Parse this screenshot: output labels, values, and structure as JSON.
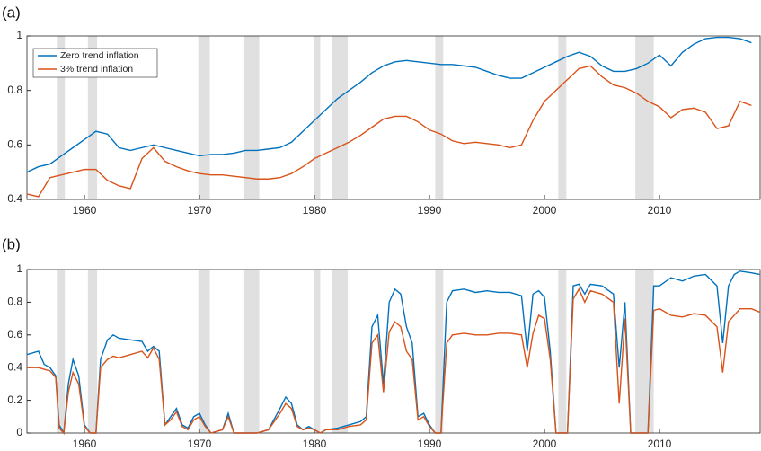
{
  "chart_data": [
    {
      "type": "line",
      "title": "(a)",
      "x": [
        1955,
        1956,
        1957,
        1958,
        1959,
        1960,
        1961,
        1962,
        1963,
        1964,
        1965,
        1966,
        1967,
        1968,
        1969,
        1970,
        1971,
        1972,
        1973,
        1974,
        1975,
        1976,
        1977,
        1978,
        1979,
        1980,
        1981,
        1982,
        1983,
        1984,
        1985,
        1986,
        1987,
        1988,
        1989,
        1990,
        1991,
        1992,
        1993,
        1994,
        1995,
        1996,
        1997,
        1998,
        1999,
        2000,
        2001,
        2002,
        2003,
        2004,
        2005,
        2006,
        2007,
        2008,
        2009,
        2010,
        2011,
        2012,
        2013,
        2014,
        2015,
        2016,
        2017,
        2018
      ],
      "series": [
        {
          "name": "Zero trend inflation",
          "color": "#0072bd",
          "values": [
            0.5,
            0.52,
            0.53,
            0.56,
            0.59,
            0.62,
            0.65,
            0.64,
            0.59,
            0.58,
            0.59,
            0.6,
            0.59,
            0.58,
            0.57,
            0.56,
            0.565,
            0.565,
            0.57,
            0.58,
            0.58,
            0.585,
            0.59,
            0.61,
            0.65,
            0.69,
            0.73,
            0.77,
            0.8,
            0.83,
            0.865,
            0.89,
            0.905,
            0.91,
            0.905,
            0.9,
            0.895,
            0.895,
            0.89,
            0.885,
            0.87,
            0.855,
            0.845,
            0.845,
            0.865,
            0.885,
            0.905,
            0.925,
            0.94,
            0.925,
            0.89,
            0.87,
            0.87,
            0.88,
            0.9,
            0.93,
            0.89,
            0.94,
            0.97,
            0.99,
            0.995,
            0.995,
            0.99,
            0.975
          ]
        },
        {
          "name": "3% trend inflation",
          "color": "#d95319",
          "values": [
            0.42,
            0.41,
            0.48,
            0.49,
            0.5,
            0.51,
            0.51,
            0.47,
            0.45,
            0.44,
            0.55,
            0.59,
            0.54,
            0.52,
            0.505,
            0.495,
            0.49,
            0.49,
            0.485,
            0.48,
            0.475,
            0.475,
            0.48,
            0.495,
            0.52,
            0.55,
            0.57,
            0.59,
            0.61,
            0.635,
            0.665,
            0.695,
            0.705,
            0.705,
            0.685,
            0.655,
            0.64,
            0.615,
            0.605,
            0.61,
            0.605,
            0.6,
            0.59,
            0.6,
            0.69,
            0.76,
            0.8,
            0.84,
            0.88,
            0.89,
            0.85,
            0.82,
            0.81,
            0.79,
            0.76,
            0.74,
            0.7,
            0.73,
            0.735,
            0.72,
            0.66,
            0.67,
            0.76,
            0.745
          ]
        }
      ],
      "shaded_regions": [
        [
          1957.6,
          1958.3
        ],
        [
          1960.3,
          1961.1
        ],
        [
          1969.9,
          1970.9
        ],
        [
          1973.9,
          1975.2
        ],
        [
          1980.0,
          1980.5
        ],
        [
          1981.5,
          1982.9
        ],
        [
          1990.5,
          1991.2
        ],
        [
          2001.2,
          2001.9
        ],
        [
          2007.9,
          2009.5
        ]
      ],
      "shade_color": "#e0e0e0",
      "xlim": [
        1955,
        2018.75
      ],
      "xticks": [
        1960,
        1970,
        1980,
        1990,
        2000,
        2010
      ],
      "ylim": [
        0.4,
        1
      ],
      "yticks": [
        0.4,
        0.6,
        0.8,
        1
      ],
      "legend": "upper left"
    },
    {
      "type": "line",
      "title": "(b)",
      "x": [
        1955,
        1956,
        1956.5,
        1957,
        1957.5,
        1957.8,
        1958.2,
        1958.6,
        1959,
        1959.5,
        1960,
        1960.5,
        1961,
        1961.4,
        1962,
        1962.5,
        1963,
        1964,
        1965,
        1965.5,
        1966,
        1966.5,
        1967,
        1967.5,
        1968,
        1968.5,
        1969,
        1969.5,
        1970,
        1970.5,
        1971,
        1972,
        1972.5,
        1973,
        1974,
        1975,
        1976,
        1977,
        1977.5,
        1978,
        1978.5,
        1979,
        1979.5,
        1980,
        1980.5,
        1981,
        1982,
        1983,
        1984,
        1984.5,
        1985,
        1985.5,
        1986,
        1986.5,
        1987,
        1987.5,
        1988,
        1988.5,
        1989,
        1989.5,
        1990,
        1990.5,
        1991,
        1991.5,
        1992,
        1993,
        1994,
        1995,
        1996,
        1997,
        1998,
        1998.5,
        1999,
        1999.5,
        2000,
        2000.5,
        2001,
        2002,
        2002.5,
        2003,
        2003.5,
        2004,
        2005,
        2006,
        2006.5,
        2007,
        2007.5,
        2008,
        2009,
        2009.5,
        2010,
        2011,
        2012,
        2013,
        2014,
        2015,
        2015.5,
        2016,
        2016.5,
        2017,
        2018,
        2018.7
      ],
      "series": [
        {
          "color": "#0072bd",
          "values": [
            0.48,
            0.5,
            0.42,
            0.4,
            0.35,
            0.05,
            0.0,
            0.3,
            0.45,
            0.35,
            0.05,
            0.0,
            0.0,
            0.45,
            0.57,
            0.6,
            0.58,
            0.57,
            0.56,
            0.5,
            0.53,
            0.5,
            0.05,
            0.1,
            0.15,
            0.05,
            0.03,
            0.1,
            0.12,
            0.05,
            0.0,
            0.02,
            0.12,
            0.0,
            0.0,
            0.0,
            0.02,
            0.15,
            0.22,
            0.18,
            0.05,
            0.02,
            0.04,
            0.02,
            0.0,
            0.02,
            0.03,
            0.05,
            0.07,
            0.1,
            0.65,
            0.72,
            0.3,
            0.8,
            0.88,
            0.85,
            0.65,
            0.55,
            0.1,
            0.12,
            0.05,
            0.0,
            0.0,
            0.8,
            0.87,
            0.88,
            0.86,
            0.87,
            0.86,
            0.86,
            0.84,
            0.5,
            0.85,
            0.87,
            0.83,
            0.5,
            0.0,
            0.0,
            0.9,
            0.91,
            0.85,
            0.91,
            0.9,
            0.85,
            0.4,
            0.8,
            0.0,
            0.0,
            0.0,
            0.9,
            0.9,
            0.95,
            0.93,
            0.96,
            0.97,
            0.9,
            0.55,
            0.9,
            0.97,
            0.99,
            0.98,
            0.97
          ]
        },
        {
          "color": "#d95319",
          "values": [
            0.4,
            0.4,
            0.39,
            0.38,
            0.34,
            0.03,
            0.0,
            0.25,
            0.37,
            0.3,
            0.04,
            0.0,
            0.0,
            0.4,
            0.45,
            0.47,
            0.46,
            0.48,
            0.5,
            0.46,
            0.52,
            0.45,
            0.05,
            0.08,
            0.13,
            0.04,
            0.02,
            0.08,
            0.1,
            0.04,
            0.0,
            0.02,
            0.1,
            0.0,
            0.0,
            0.0,
            0.02,
            0.12,
            0.18,
            0.15,
            0.04,
            0.02,
            0.03,
            0.02,
            0.0,
            0.02,
            0.02,
            0.04,
            0.05,
            0.08,
            0.55,
            0.6,
            0.25,
            0.62,
            0.68,
            0.65,
            0.5,
            0.45,
            0.08,
            0.1,
            0.04,
            0.0,
            0.0,
            0.55,
            0.6,
            0.61,
            0.6,
            0.6,
            0.61,
            0.61,
            0.6,
            0.4,
            0.61,
            0.72,
            0.7,
            0.45,
            0.0,
            0.0,
            0.82,
            0.88,
            0.8,
            0.87,
            0.85,
            0.8,
            0.18,
            0.7,
            0.0,
            0.0,
            0.0,
            0.75,
            0.76,
            0.72,
            0.71,
            0.73,
            0.72,
            0.65,
            0.37,
            0.68,
            0.72,
            0.76,
            0.76,
            0.74
          ]
        }
      ],
      "shaded_regions": [
        [
          1957.6,
          1958.3
        ],
        [
          1960.3,
          1961.1
        ],
        [
          1969.9,
          1970.9
        ],
        [
          1973.9,
          1975.2
        ],
        [
          1980.0,
          1980.5
        ],
        [
          1981.5,
          1982.9
        ],
        [
          1990.5,
          1991.2
        ],
        [
          2001.2,
          2001.9
        ],
        [
          2007.9,
          2009.5
        ]
      ],
      "shade_color": "#e0e0e0",
      "xlim": [
        1955,
        2018.75
      ],
      "xticks": [
        1960,
        1970,
        1980,
        1990,
        2000,
        2010
      ],
      "ylim": [
        0,
        1
      ],
      "yticks": [
        0,
        0.2,
        0.4,
        0.6,
        0.8,
        1
      ]
    }
  ]
}
